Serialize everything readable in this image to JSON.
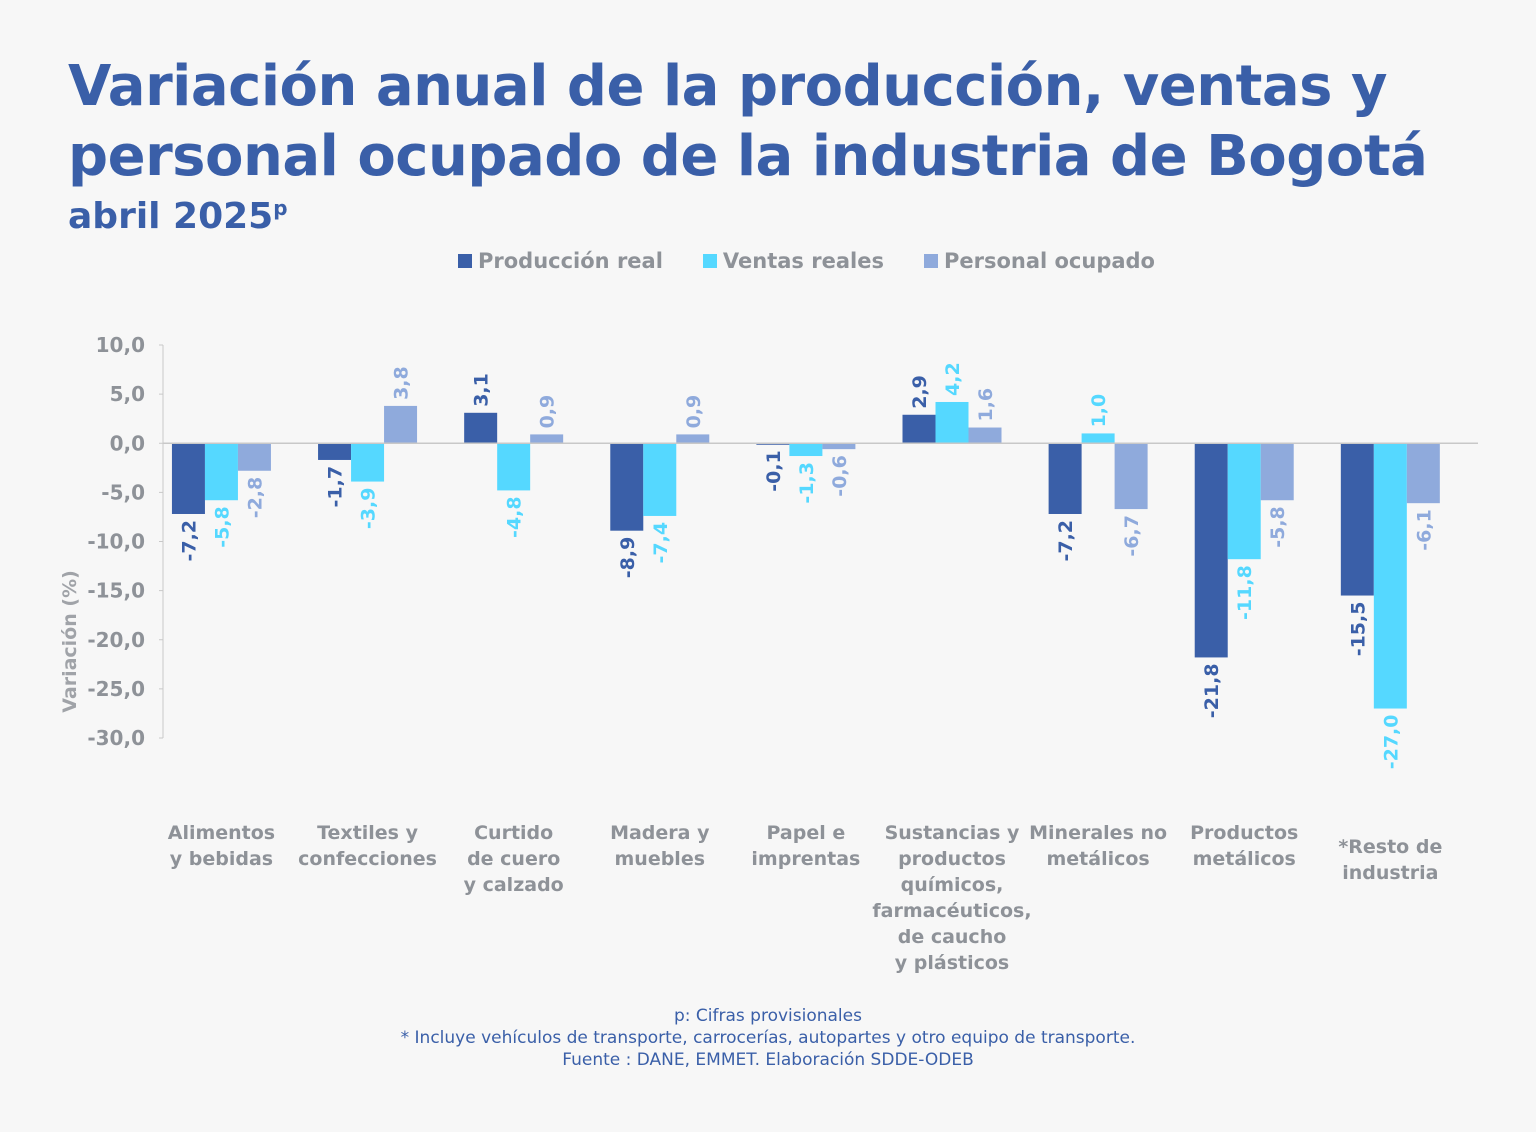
{
  "title_line1": "Variación anual de la producción, ventas y",
  "title_line2": "personal ocupado de la industria de Bogotá",
  "subtitle": "abril 2025",
  "subtitle_sup": "p",
  "notes": {
    "line1": "p: Cifras provisionales",
    "line2": "*  Incluye vehículos de transporte, carrocerías, autopartes y otro equipo de transporte.",
    "line3": "Fuente : DANE, EMMET. Elaboración SDDE-ODEB"
  },
  "chart_data": {
    "type": "bar",
    "ylabel": "Variación (%)",
    "ylim": [
      -30,
      10
    ],
    "yticks": [
      "10,0",
      "5,0",
      "0,0",
      "-5,0",
      "-10,0",
      "-15,0",
      "-20,0",
      "-25,0",
      "-30,0"
    ],
    "ytick_values": [
      10,
      5,
      0,
      -5,
      -10,
      -15,
      -20,
      -25,
      -30
    ],
    "grid": false,
    "legend_position": "top",
    "categories": [
      [
        "Alimentos",
        "y bebidas"
      ],
      [
        "Textiles y",
        "confecciones"
      ],
      [
        "Curtido",
        "de cuero",
        "y calzado"
      ],
      [
        "Madera y",
        "muebles"
      ],
      [
        "Papel e",
        "imprentas"
      ],
      [
        "Sustancias y",
        "productos",
        "químicos,",
        "farmacéuticos,",
        "de caucho",
        "y plásticos"
      ],
      [
        "Minerales no",
        "metálicos"
      ],
      [
        "Productos",
        "metálicos"
      ],
      [
        "*Resto de",
        "industria"
      ]
    ],
    "series": [
      {
        "name": "Producción real",
        "color": "#3a5fa8",
        "values": [
          -7.2,
          -1.7,
          3.1,
          -8.9,
          -0.1,
          2.9,
          -7.2,
          -21.8,
          -15.5
        ]
      },
      {
        "name": "Ventas reales",
        "color": "#55d8ff",
        "values": [
          -5.8,
          -3.9,
          -4.8,
          -7.4,
          -1.3,
          4.2,
          1.0,
          -11.8,
          -27.0
        ]
      },
      {
        "name": "Personal ocupado",
        "color": "#8faadc",
        "values": [
          -2.8,
          3.8,
          0.9,
          0.9,
          -0.6,
          1.6,
          -6.7,
          -5.8,
          -6.1
        ]
      }
    ]
  }
}
